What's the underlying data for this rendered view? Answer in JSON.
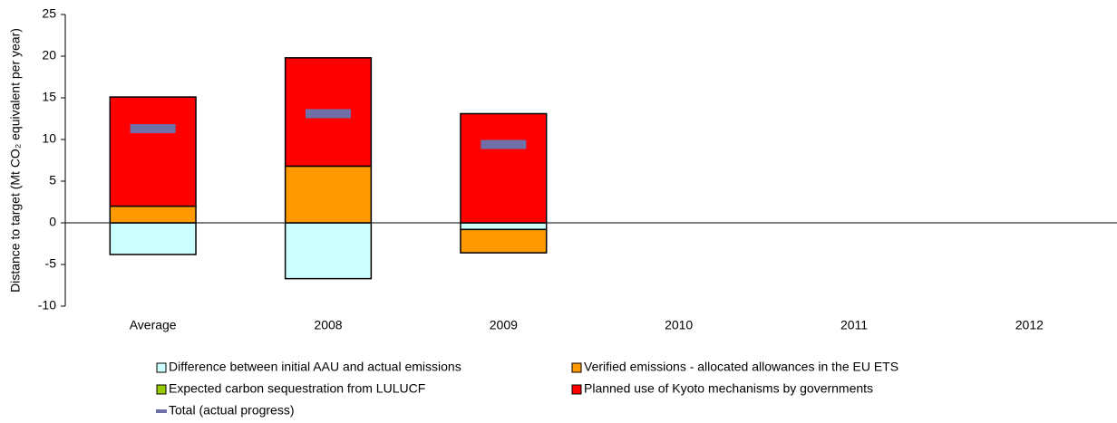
{
  "chart_data": {
    "type": "bar",
    "y_label": "Distance to target (Mt CO₂ equivalent per year)",
    "categories": [
      "Average",
      "2008",
      "2009",
      "2010",
      "2011",
      "2012"
    ],
    "series": [
      {
        "name": "Difference between initial AAU and actual emissions",
        "color": "#ccffff",
        "values": [
          -3.8,
          -6.7,
          -0.8,
          null,
          null,
          null
        ]
      },
      {
        "name": "Verified emissions - allocated allowances in the EU ETS",
        "color": "#ff9900",
        "values": [
          2.0,
          6.8,
          -2.8,
          null,
          null,
          null
        ]
      },
      {
        "name": "Expected carbon sequestration from LULUCF",
        "color": "#99cc00",
        "values": [
          0,
          0,
          0,
          null,
          null,
          null
        ]
      },
      {
        "name": "Planned use of Kyoto mechanisms by governments",
        "color": "#ff0000",
        "values": [
          13.1,
          13.0,
          13.1,
          null,
          null,
          null
        ]
      },
      {
        "name": "Total (actual progress)",
        "color": "#7070a8",
        "type": "marker",
        "values": [
          11.3,
          13.1,
          9.4,
          null,
          null,
          null
        ]
      }
    ],
    "ylim": [
      -10,
      25
    ],
    "yticks": [
      -10,
      -5,
      0,
      5,
      10,
      15,
      20,
      25
    ]
  }
}
